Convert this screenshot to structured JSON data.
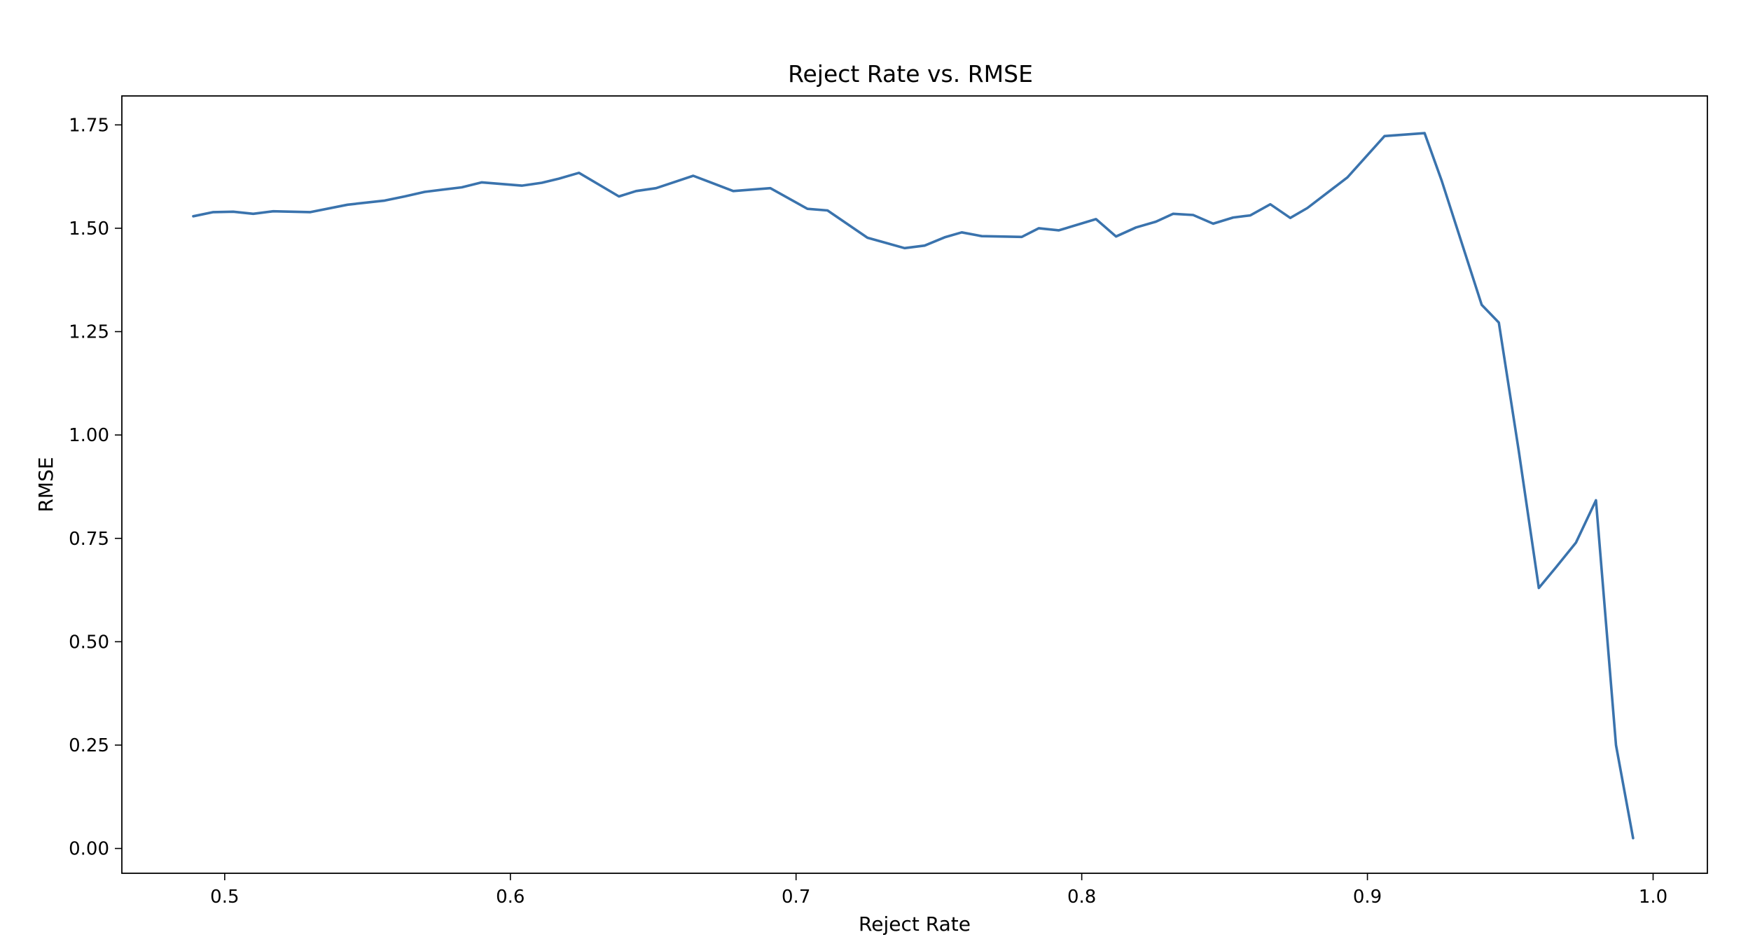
{
  "chart_data": {
    "type": "line",
    "title": "Reject Rate vs. RMSE",
    "xlabel": "Reject Rate",
    "ylabel": "RMSE",
    "xlim": [
      0.464,
      1.019
    ],
    "ylim": [
      -0.06,
      1.82
    ],
    "xticks": [
      0.5,
      0.6,
      0.7,
      0.8,
      0.9,
      1.0
    ],
    "xtick_labels": [
      "0.5",
      "0.6",
      "0.7",
      "0.8",
      "0.9",
      "1.0"
    ],
    "yticks": [
      0.0,
      0.25,
      0.5,
      0.75,
      1.0,
      1.25,
      1.5,
      1.75
    ],
    "ytick_labels": [
      "0.00",
      "0.25",
      "0.50",
      "0.75",
      "1.00",
      "1.25",
      "1.50",
      "1.75"
    ],
    "grid": false,
    "legend": "none",
    "color": "#3a73ad",
    "series": [
      {
        "x": [
          0.489,
          0.496,
          0.503,
          0.51,
          0.517,
          0.53,
          0.543,
          0.556,
          0.563,
          0.57,
          0.583,
          0.59,
          0.604,
          0.611,
          0.617,
          0.624,
          0.638,
          0.644,
          0.651,
          0.664,
          0.678,
          0.691,
          0.704,
          0.711,
          0.725,
          0.738,
          0.745,
          0.752,
          0.758,
          0.765,
          0.779,
          0.785,
          0.792,
          0.805,
          0.812,
          0.819,
          0.826,
          0.832,
          0.839,
          0.846,
          0.853,
          0.859,
          0.866,
          0.873,
          0.879,
          0.893,
          0.906,
          0.92,
          0.926,
          0.94,
          0.946,
          0.953,
          0.96,
          0.966,
          0.973,
          0.98,
          0.987,
          0.993
        ],
        "y": [
          1.529,
          1.539,
          1.54,
          1.535,
          1.541,
          1.539,
          1.557,
          1.567,
          1.577,
          1.588,
          1.599,
          1.611,
          1.603,
          1.61,
          1.62,
          1.634,
          1.577,
          1.59,
          1.597,
          1.627,
          1.59,
          1.597,
          1.547,
          1.543,
          1.477,
          1.452,
          1.458,
          1.478,
          1.49,
          1.481,
          1.479,
          1.5,
          1.495,
          1.522,
          1.48,
          1.502,
          1.516,
          1.535,
          1.532,
          1.511,
          1.526,
          1.531,
          1.558,
          1.525,
          1.549,
          1.623,
          1.723,
          1.73,
          1.615,
          1.315,
          1.272,
          0.96,
          0.63,
          0.68,
          0.74,
          0.842,
          0.25,
          0.025
        ]
      }
    ]
  }
}
